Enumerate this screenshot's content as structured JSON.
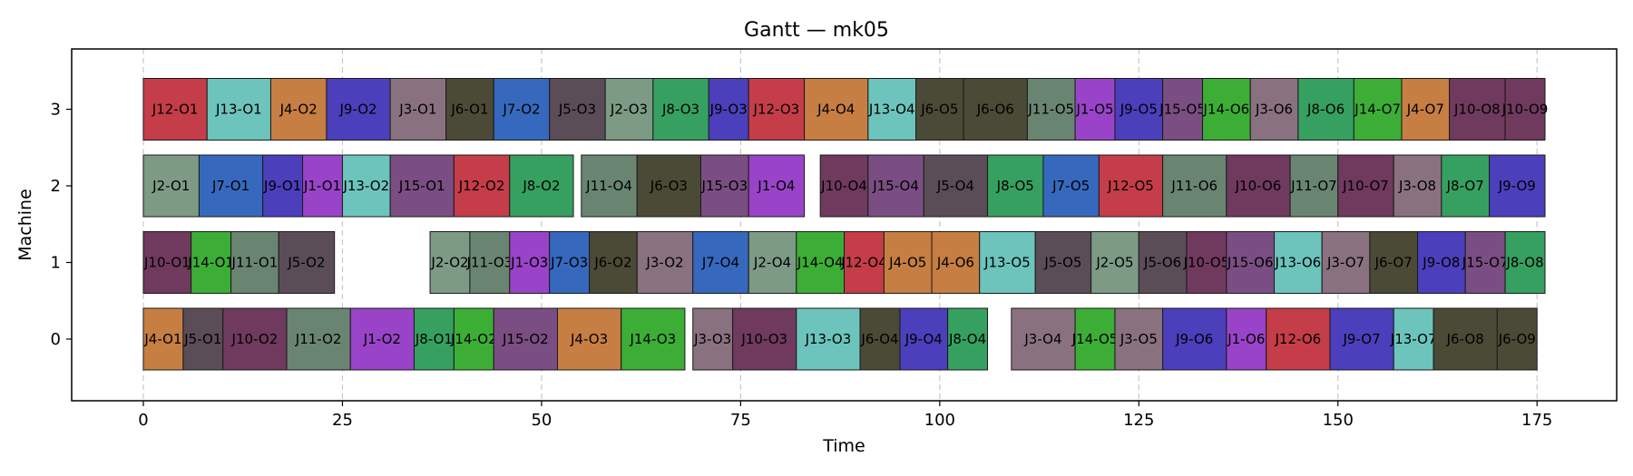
{
  "chart_data": {
    "type": "gantt",
    "title": "Gantt — mk05",
    "xlabel": "Time",
    "ylabel": "Machine",
    "xlim": [
      -9,
      185
    ],
    "xticks": [
      0,
      25,
      50,
      75,
      100,
      125,
      150,
      175
    ],
    "machines": [
      0,
      1,
      2,
      3
    ],
    "grid": "vertical dashed at x ticks",
    "job_colors": {
      "J1": "#9944c8",
      "J2": "#7c9a84",
      "J3": "#8a7180",
      "J4": "#c67e43",
      "J5": "#5b4d57",
      "J6": "#4a4a36",
      "J7": "#3669be",
      "J8": "#36a060",
      "J9": "#4b3fbc",
      "J10": "#6f3a5e",
      "J11": "#6a8472",
      "J12": "#c43d48",
      "J13": "#6cc4bc",
      "J14": "#3cae36",
      "J15": "#7a4e82"
    },
    "operations": [
      {
        "machine": 3,
        "job": "J12",
        "label": "J12-O1",
        "start": 0,
        "end": 8
      },
      {
        "machine": 3,
        "job": "J13",
        "label": "J13-O1",
        "start": 8,
        "end": 16
      },
      {
        "machine": 3,
        "job": "J4",
        "label": "J4-O2",
        "start": 16,
        "end": 23
      },
      {
        "machine": 3,
        "job": "J9",
        "label": "J9-O2",
        "start": 23,
        "end": 31
      },
      {
        "machine": 3,
        "job": "J3",
        "label": "J3-O1",
        "start": 31,
        "end": 38
      },
      {
        "machine": 3,
        "job": "J6",
        "label": "J6-O1",
        "start": 38,
        "end": 44
      },
      {
        "machine": 3,
        "job": "J7",
        "label": "J7-O2",
        "start": 44,
        "end": 51
      },
      {
        "machine": 3,
        "job": "J5",
        "label": "J5-O3",
        "start": 51,
        "end": 58
      },
      {
        "machine": 3,
        "job": "J2",
        "label": "J2-O3",
        "start": 58,
        "end": 64
      },
      {
        "machine": 3,
        "job": "J8",
        "label": "J8-O3",
        "start": 64,
        "end": 71
      },
      {
        "machine": 3,
        "job": "J9",
        "label": "J9-O3",
        "start": 71,
        "end": 76
      },
      {
        "machine": 3,
        "job": "J12",
        "label": "J12-O3",
        "start": 76,
        "end": 83
      },
      {
        "machine": 3,
        "job": "J4",
        "label": "J4-O4",
        "start": 83,
        "end": 91
      },
      {
        "machine": 3,
        "job": "J13",
        "label": "J13-O4",
        "start": 91,
        "end": 97
      },
      {
        "machine": 3,
        "job": "J6",
        "label": "J6-O5",
        "start": 97,
        "end": 103
      },
      {
        "machine": 3,
        "job": "J6",
        "label": "J6-O6",
        "start": 103,
        "end": 111
      },
      {
        "machine": 3,
        "job": "J11",
        "label": "J11-O5",
        "start": 111,
        "end": 117
      },
      {
        "machine": 3,
        "job": "J1",
        "label": "J1-O5",
        "start": 117,
        "end": 122
      },
      {
        "machine": 3,
        "job": "J9",
        "label": "J9-O5",
        "start": 122,
        "end": 128
      },
      {
        "machine": 3,
        "job": "J15",
        "label": "J15-O5",
        "start": 128,
        "end": 133
      },
      {
        "machine": 3,
        "job": "J14",
        "label": "J14-O6",
        "start": 133,
        "end": 139
      },
      {
        "machine": 3,
        "job": "J3",
        "label": "J3-O6",
        "start": 139,
        "end": 145
      },
      {
        "machine": 3,
        "job": "J8",
        "label": "J8-O6",
        "start": 145,
        "end": 152
      },
      {
        "machine": 3,
        "job": "J14",
        "label": "J14-O7",
        "start": 152,
        "end": 158
      },
      {
        "machine": 3,
        "job": "J4",
        "label": "J4-O7",
        "start": 158,
        "end": 164
      },
      {
        "machine": 3,
        "job": "J10",
        "label": "J10-O8",
        "start": 164,
        "end": 171
      },
      {
        "machine": 3,
        "job": "J10",
        "label": "J10-O9",
        "start": 171,
        "end": 176
      },
      {
        "machine": 2,
        "job": "J2",
        "label": "J2-O1",
        "start": 0,
        "end": 7
      },
      {
        "machine": 2,
        "job": "J7",
        "label": "J7-O1",
        "start": 7,
        "end": 15
      },
      {
        "machine": 2,
        "job": "J9",
        "label": "J9-O1",
        "start": 15,
        "end": 20
      },
      {
        "machine": 2,
        "job": "J1",
        "label": "J1-O1",
        "start": 20,
        "end": 25
      },
      {
        "machine": 2,
        "job": "J13",
        "label": "J13-O2",
        "start": 25,
        "end": 31
      },
      {
        "machine": 2,
        "job": "J15",
        "label": "J15-O1",
        "start": 31,
        "end": 39
      },
      {
        "machine": 2,
        "job": "J12",
        "label": "J12-O2",
        "start": 39,
        "end": 46
      },
      {
        "machine": 2,
        "job": "J8",
        "label": "J8-O2",
        "start": 46,
        "end": 54
      },
      {
        "machine": 2,
        "job": "J11",
        "label": "J11-O4",
        "start": 55,
        "end": 62
      },
      {
        "machine": 2,
        "job": "J6",
        "label": "J6-O3",
        "start": 62,
        "end": 70
      },
      {
        "machine": 2,
        "job": "J15",
        "label": "J15-O3",
        "start": 70,
        "end": 76
      },
      {
        "machine": 2,
        "job": "J1",
        "label": "J1-O4",
        "start": 76,
        "end": 83
      },
      {
        "machine": 2,
        "job": "J10",
        "label": "J10-O4",
        "start": 85,
        "end": 91
      },
      {
        "machine": 2,
        "job": "J15",
        "label": "J15-O4",
        "start": 91,
        "end": 98
      },
      {
        "machine": 2,
        "job": "J5",
        "label": "J5-O4",
        "start": 98,
        "end": 106
      },
      {
        "machine": 2,
        "job": "J8",
        "label": "J8-O5",
        "start": 106,
        "end": 113
      },
      {
        "machine": 2,
        "job": "J7",
        "label": "J7-O5",
        "start": 113,
        "end": 120
      },
      {
        "machine": 2,
        "job": "J12",
        "label": "J12-O5",
        "start": 120,
        "end": 128
      },
      {
        "machine": 2,
        "job": "J11",
        "label": "J11-O6",
        "start": 128,
        "end": 136
      },
      {
        "machine": 2,
        "job": "J10",
        "label": "J10-O6",
        "start": 136,
        "end": 144
      },
      {
        "machine": 2,
        "job": "J11",
        "label": "J11-O7",
        "start": 144,
        "end": 150
      },
      {
        "machine": 2,
        "job": "J10",
        "label": "J10-O7",
        "start": 150,
        "end": 157
      },
      {
        "machine": 2,
        "job": "J3",
        "label": "J3-O8",
        "start": 157,
        "end": 163
      },
      {
        "machine": 2,
        "job": "J8",
        "label": "J8-O7",
        "start": 163,
        "end": 169
      },
      {
        "machine": 2,
        "job": "J9",
        "label": "J9-O9",
        "start": 169,
        "end": 176
      },
      {
        "machine": 1,
        "job": "J10",
        "label": "J10-O1",
        "start": 0,
        "end": 6
      },
      {
        "machine": 1,
        "job": "J14",
        "label": "J14-O1",
        "start": 6,
        "end": 11
      },
      {
        "machine": 1,
        "job": "J11",
        "label": "J11-O1",
        "start": 11,
        "end": 17
      },
      {
        "machine": 1,
        "job": "J5",
        "label": "J5-O2",
        "start": 17,
        "end": 24
      },
      {
        "machine": 1,
        "job": "J2",
        "label": "J2-O2",
        "start": 36,
        "end": 41
      },
      {
        "machine": 1,
        "job": "J11",
        "label": "J11-O3",
        "start": 41,
        "end": 46
      },
      {
        "machine": 1,
        "job": "J1",
        "label": "J1-O3",
        "start": 46,
        "end": 51
      },
      {
        "machine": 1,
        "job": "J7",
        "label": "J7-O3",
        "start": 51,
        "end": 56
      },
      {
        "machine": 1,
        "job": "J6",
        "label": "J6-O2",
        "start": 56,
        "end": 62
      },
      {
        "machine": 1,
        "job": "J3",
        "label": "J3-O2",
        "start": 62,
        "end": 69
      },
      {
        "machine": 1,
        "job": "J7",
        "label": "J7-O4",
        "start": 69,
        "end": 76
      },
      {
        "machine": 1,
        "job": "J2",
        "label": "J2-O4",
        "start": 76,
        "end": 82
      },
      {
        "machine": 1,
        "job": "J14",
        "label": "J14-O4",
        "start": 82,
        "end": 88
      },
      {
        "machine": 1,
        "job": "J12",
        "label": "J12-O4",
        "start": 88,
        "end": 93
      },
      {
        "machine": 1,
        "job": "J4",
        "label": "J4-O5",
        "start": 93,
        "end": 99
      },
      {
        "machine": 1,
        "job": "J4",
        "label": "J4-O6",
        "start": 99,
        "end": 105
      },
      {
        "machine": 1,
        "job": "J13",
        "label": "J13-O5",
        "start": 105,
        "end": 112
      },
      {
        "machine": 1,
        "job": "J5",
        "label": "J5-O5",
        "start": 112,
        "end": 119
      },
      {
        "machine": 1,
        "job": "J2",
        "label": "J2-O5",
        "start": 119,
        "end": 125
      },
      {
        "machine": 1,
        "job": "J5",
        "label": "J5-O6",
        "start": 125,
        "end": 131
      },
      {
        "machine": 1,
        "job": "J10",
        "label": "J10-O5",
        "start": 131,
        "end": 136
      },
      {
        "machine": 1,
        "job": "J15",
        "label": "J15-O6",
        "start": 136,
        "end": 142
      },
      {
        "machine": 1,
        "job": "J13",
        "label": "J13-O6",
        "start": 142,
        "end": 148
      },
      {
        "machine": 1,
        "job": "J3",
        "label": "J3-O7",
        "start": 148,
        "end": 154
      },
      {
        "machine": 1,
        "job": "J6",
        "label": "J6-O7",
        "start": 154,
        "end": 160
      },
      {
        "machine": 1,
        "job": "J9",
        "label": "J9-O8",
        "start": 160,
        "end": 166
      },
      {
        "machine": 1,
        "job": "J15",
        "label": "J15-O7",
        "start": 166,
        "end": 171
      },
      {
        "machine": 1,
        "job": "J8",
        "label": "J8-O8",
        "start": 171,
        "end": 176
      },
      {
        "machine": 0,
        "job": "J4",
        "label": "J4-O1",
        "start": 0,
        "end": 5
      },
      {
        "machine": 0,
        "job": "J5",
        "label": "J5-O1",
        "start": 5,
        "end": 10
      },
      {
        "machine": 0,
        "job": "J10",
        "label": "J10-O2",
        "start": 10,
        "end": 18
      },
      {
        "machine": 0,
        "job": "J11",
        "label": "J11-O2",
        "start": 18,
        "end": 26
      },
      {
        "machine": 0,
        "job": "J1",
        "label": "J1-O2",
        "start": 26,
        "end": 34
      },
      {
        "machine": 0,
        "job": "J8",
        "label": "J8-O1",
        "start": 34,
        "end": 39
      },
      {
        "machine": 0,
        "job": "J14",
        "label": "J14-O2",
        "start": 39,
        "end": 44
      },
      {
        "machine": 0,
        "job": "J15",
        "label": "J15-O2",
        "start": 44,
        "end": 52
      },
      {
        "machine": 0,
        "job": "J4",
        "label": "J4-O3",
        "start": 52,
        "end": 60
      },
      {
        "machine": 0,
        "job": "J14",
        "label": "J14-O3",
        "start": 60,
        "end": 68
      },
      {
        "machine": 0,
        "job": "J3",
        "label": "J3-O3",
        "start": 69,
        "end": 74
      },
      {
        "machine": 0,
        "job": "J10",
        "label": "J10-O3",
        "start": 74,
        "end": 82
      },
      {
        "machine": 0,
        "job": "J13",
        "label": "J13-O3",
        "start": 82,
        "end": 90
      },
      {
        "machine": 0,
        "job": "J6",
        "label": "J6-O4",
        "start": 90,
        "end": 95
      },
      {
        "machine": 0,
        "job": "J9",
        "label": "J9-O4",
        "start": 95,
        "end": 101
      },
      {
        "machine": 0,
        "job": "J8",
        "label": "J8-O4",
        "start": 101,
        "end": 106
      },
      {
        "machine": 0,
        "job": "J3",
        "label": "J3-O4",
        "start": 109,
        "end": 117
      },
      {
        "machine": 0,
        "job": "J14",
        "label": "J14-O5",
        "start": 117,
        "end": 122
      },
      {
        "machine": 0,
        "job": "J3",
        "label": "J3-O5",
        "start": 122,
        "end": 128
      },
      {
        "machine": 0,
        "job": "J9",
        "label": "J9-O6",
        "start": 128,
        "end": 136
      },
      {
        "machine": 0,
        "job": "J1",
        "label": "J1-O6",
        "start": 136,
        "end": 141
      },
      {
        "machine": 0,
        "job": "J12",
        "label": "J12-O6",
        "start": 141,
        "end": 149
      },
      {
        "machine": 0,
        "job": "J9",
        "label": "J9-O7",
        "start": 149,
        "end": 157
      },
      {
        "machine": 0,
        "job": "J13",
        "label": "J13-O7",
        "start": 157,
        "end": 162
      },
      {
        "machine": 0,
        "job": "J6",
        "label": "J6-O8",
        "start": 162,
        "end": 170
      },
      {
        "machine": 0,
        "job": "J6",
        "label": "J6-O9",
        "start": 170,
        "end": 175
      }
    ]
  }
}
